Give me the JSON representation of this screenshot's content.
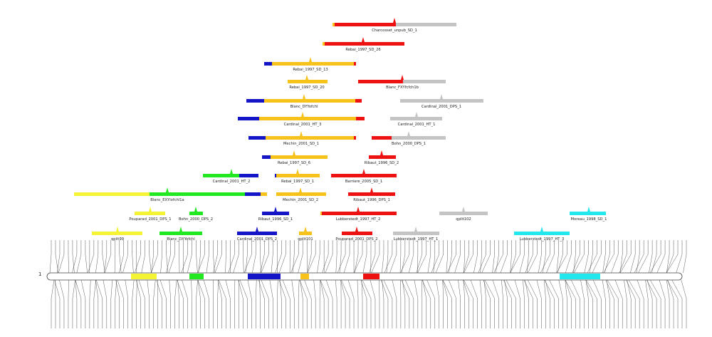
{
  "diagram": {
    "chromosome_label": "1",
    "colors": {
      "red": "#ee1111",
      "orange": "#f7c21a",
      "gray": "#c4c4c4",
      "blue": "#1515c8",
      "green": "#22e822",
      "yellow": "#f4f435",
      "cyan": "#22e8ee"
    },
    "qtls": [
      {
        "label": "Charcosset_unpub_SD_1"
      },
      {
        "label": "Rebai_1997_SD_26"
      },
      {
        "label": "Rebai_1997_SD_13"
      },
      {
        "label": "Rebai_1997_SD_20"
      },
      {
        "label": "Blanc_FXYfcfch1b"
      },
      {
        "label": "Blanc_DYYofchl"
      },
      {
        "label": "Cardinal_2001_DPS_1"
      },
      {
        "label": "Cardinal_2001_HT_3"
      },
      {
        "label": "Cardinal_2001_HT_1"
      },
      {
        "label": "Mechin_2001_SD_1"
      },
      {
        "label": "Bohn_2000_DPS_1"
      },
      {
        "label": "Rebai_1997_SD_6"
      },
      {
        "label": "Ribaut_1996_SD_2"
      },
      {
        "label": "Cardinal_2001_HT_2"
      },
      {
        "label": "Rebai_1997_SD_1"
      },
      {
        "label": "Barriere_2005_SD_1"
      },
      {
        "label": "Blanc_EXYlofchl1a"
      },
      {
        "label": "Mechin_2001_SD_2"
      },
      {
        "label": "Ribaut_1996_DPS_1"
      },
      {
        "label": "Pouparad_2001_DPS_1"
      },
      {
        "label": "Bohn_2000_DPS_2"
      },
      {
        "label": "Ribaut_1996_SD_1"
      },
      {
        "label": "Lubberstedt_1997_HT_2"
      },
      {
        "label": "qplit102"
      },
      {
        "label": "Moreau_1998_SD_1"
      },
      {
        "label": "qplit99"
      },
      {
        "label": "Blanc_DXYofchl"
      },
      {
        "label": "Cardinal_2001_DPS_2"
      },
      {
        "label": "qplit101"
      },
      {
        "label": "Pouparad_2001_DPS_2"
      },
      {
        "label": "Lubberstedt_1997_HT_1"
      },
      {
        "label": "Lubberstedt_1997_HT_3"
      }
    ],
    "chromosome_highlights": [
      "yellow",
      "green",
      "blue",
      "orange",
      "red",
      "cyan"
    ]
  }
}
